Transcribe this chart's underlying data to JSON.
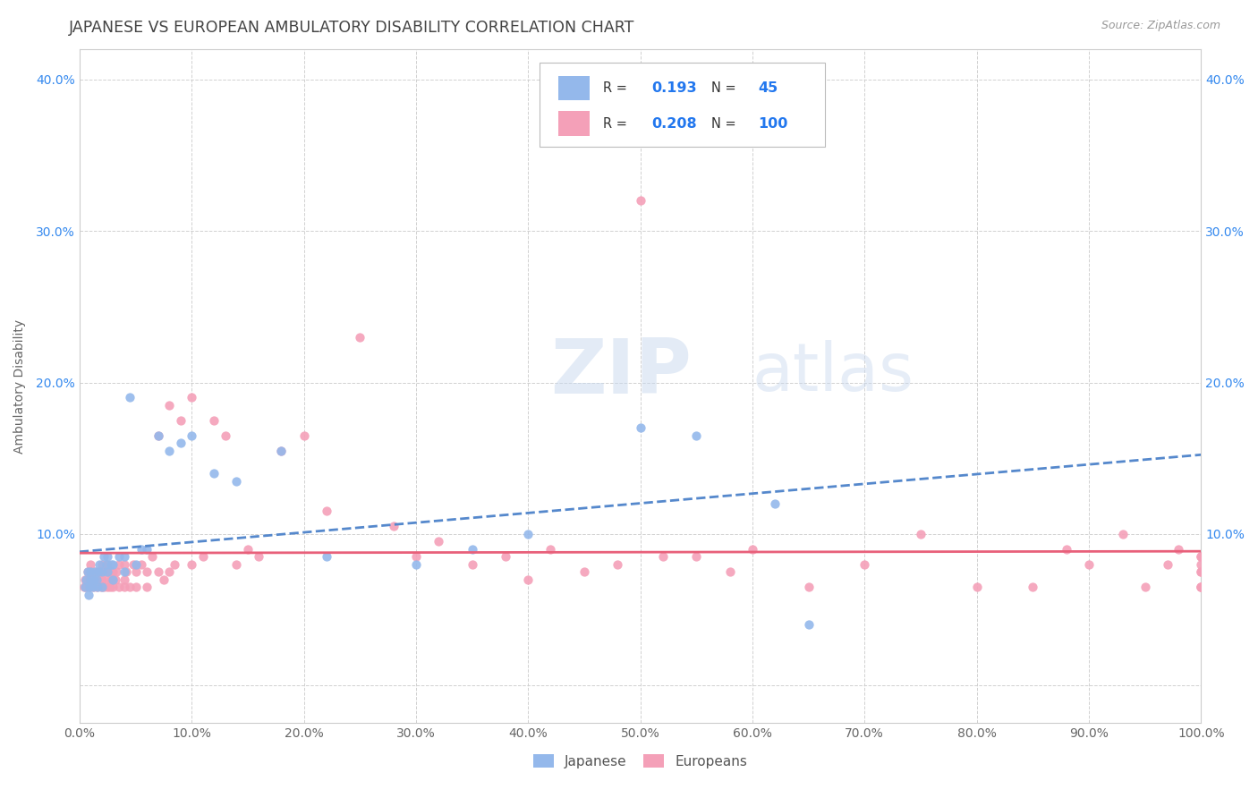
{
  "title": "JAPANESE VS EUROPEAN AMBULATORY DISABILITY CORRELATION CHART",
  "source": "Source: ZipAtlas.com",
  "ylabel": "Ambulatory Disability",
  "watermark_zip": "ZIP",
  "watermark_atlas": "atlas",
  "xlim": [
    0.0,
    1.0
  ],
  "ylim": [
    -0.025,
    0.42
  ],
  "xticks": [
    0.0,
    0.1,
    0.2,
    0.3,
    0.4,
    0.5,
    0.6,
    0.7,
    0.8,
    0.9,
    1.0
  ],
  "xticklabels": [
    "0.0%",
    "10.0%",
    "20.0%",
    "30.0%",
    "40.0%",
    "50.0%",
    "60.0%",
    "70.0%",
    "80.0%",
    "90.0%",
    "100.0%"
  ],
  "yticks": [
    0.0,
    0.1,
    0.2,
    0.3,
    0.4
  ],
  "yticklabels": [
    "",
    "10.0%",
    "20.0%",
    "30.0%",
    "40.0%"
  ],
  "japanese_color": "#94b8eb",
  "european_color": "#f4a0b8",
  "japanese_line_color": "#5588cc",
  "european_line_color": "#e8607a",
  "japanese_R": 0.193,
  "japanese_N": 45,
  "european_R": 0.208,
  "european_N": 100,
  "legend_R_color": "#2277ee",
  "background_color": "#ffffff",
  "grid_color": "#cccccc",
  "title_color": "#444444",
  "jap_x": [
    0.005,
    0.006,
    0.007,
    0.008,
    0.009,
    0.01,
    0.01,
    0.012,
    0.013,
    0.014,
    0.015,
    0.016,
    0.017,
    0.018,
    0.02,
    0.02,
    0.022,
    0.024,
    0.025,
    0.025,
    0.028,
    0.03,
    0.03,
    0.035,
    0.04,
    0.04,
    0.045,
    0.05,
    0.055,
    0.06,
    0.07,
    0.08,
    0.09,
    0.1,
    0.12,
    0.14,
    0.18,
    0.22,
    0.3,
    0.35,
    0.4,
    0.5,
    0.55,
    0.62,
    0.65
  ],
  "jap_y": [
    0.065,
    0.07,
    0.075,
    0.06,
    0.065,
    0.07,
    0.075,
    0.065,
    0.07,
    0.075,
    0.07,
    0.065,
    0.075,
    0.08,
    0.065,
    0.075,
    0.085,
    0.08,
    0.075,
    0.085,
    0.08,
    0.07,
    0.08,
    0.085,
    0.075,
    0.085,
    0.19,
    0.08,
    0.09,
    0.09,
    0.165,
    0.155,
    0.16,
    0.165,
    0.14,
    0.135,
    0.155,
    0.085,
    0.08,
    0.09,
    0.1,
    0.17,
    0.165,
    0.12,
    0.04
  ],
  "eur_x": [
    0.004,
    0.005,
    0.006,
    0.007,
    0.008,
    0.009,
    0.01,
    0.01,
    0.01,
    0.012,
    0.013,
    0.014,
    0.015,
    0.016,
    0.017,
    0.018,
    0.019,
    0.02,
    0.02,
    0.02,
    0.022,
    0.023,
    0.024,
    0.025,
    0.025,
    0.026,
    0.027,
    0.028,
    0.029,
    0.03,
    0.03,
    0.03,
    0.032,
    0.033,
    0.035,
    0.035,
    0.04,
    0.04,
    0.04,
    0.042,
    0.045,
    0.048,
    0.05,
    0.05,
    0.055,
    0.06,
    0.06,
    0.065,
    0.07,
    0.07,
    0.075,
    0.08,
    0.08,
    0.085,
    0.09,
    0.1,
    0.1,
    0.11,
    0.12,
    0.13,
    0.14,
    0.15,
    0.16,
    0.18,
    0.2,
    0.22,
    0.25,
    0.28,
    0.3,
    0.32,
    0.35,
    0.38,
    0.4,
    0.42,
    0.45,
    0.48,
    0.5,
    0.52,
    0.55,
    0.58,
    0.6,
    0.65,
    0.7,
    0.75,
    0.8,
    0.85,
    0.88,
    0.9,
    0.93,
    0.95,
    0.97,
    0.98,
    1.0,
    1.0,
    1.0,
    1.0,
    1.0,
    1.0,
    1.0,
    1.0
  ],
  "eur_y": [
    0.065,
    0.07,
    0.065,
    0.075,
    0.07,
    0.065,
    0.075,
    0.07,
    0.08,
    0.065,
    0.07,
    0.075,
    0.065,
    0.07,
    0.075,
    0.07,
    0.065,
    0.075,
    0.07,
    0.08,
    0.065,
    0.075,
    0.07,
    0.065,
    0.08,
    0.075,
    0.065,
    0.07,
    0.075,
    0.065,
    0.07,
    0.075,
    0.07,
    0.075,
    0.065,
    0.08,
    0.065,
    0.07,
    0.08,
    0.075,
    0.065,
    0.08,
    0.065,
    0.075,
    0.08,
    0.065,
    0.075,
    0.085,
    0.075,
    0.165,
    0.07,
    0.075,
    0.185,
    0.08,
    0.175,
    0.08,
    0.19,
    0.085,
    0.175,
    0.165,
    0.08,
    0.09,
    0.085,
    0.155,
    0.165,
    0.115,
    0.23,
    0.105,
    0.085,
    0.095,
    0.08,
    0.085,
    0.07,
    0.09,
    0.075,
    0.08,
    0.32,
    0.085,
    0.085,
    0.075,
    0.09,
    0.065,
    0.08,
    0.1,
    0.065,
    0.065,
    0.09,
    0.08,
    0.1,
    0.065,
    0.08,
    0.09,
    0.065,
    0.075,
    0.085,
    0.065,
    0.08,
    0.075,
    0.085,
    0.065
  ]
}
